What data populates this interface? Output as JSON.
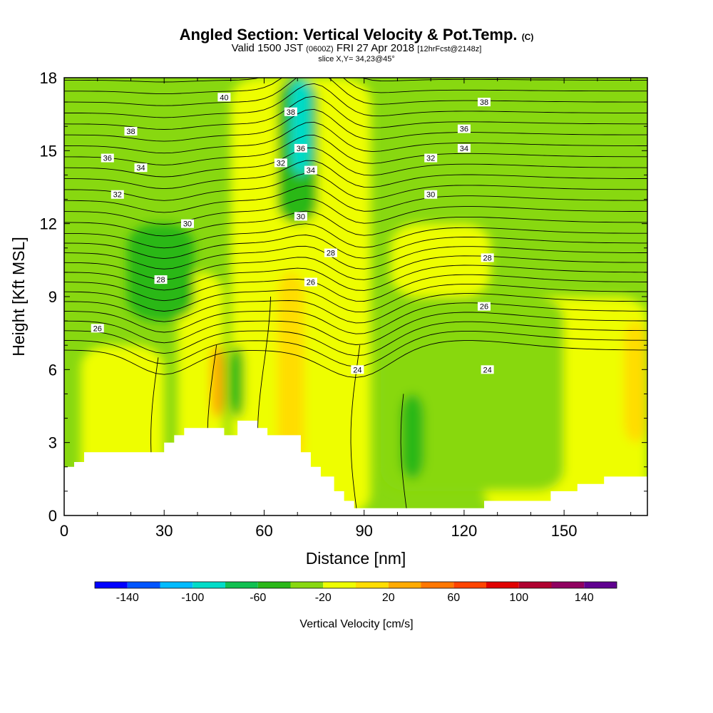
{
  "header": {
    "title_main": "Angled Section: Vertical Velocity & Pot.Temp.",
    "title_unit": "(C)",
    "valid_a": "Valid 1500 JST",
    "valid_b": "(0600Z)",
    "valid_c": "FRI 27 Apr 2018",
    "valid_d": "[12hrFcst@2148z]",
    "slice": "slice X,Y= 34,23@45°"
  },
  "chart_data": {
    "type": "heatmap",
    "xlabel": "Distance [nm]",
    "ylabel": "Height [Kft MSL]",
    "xlim": [
      0,
      175
    ],
    "ylim": [
      0,
      18
    ],
    "x_ticks": [
      0,
      30,
      60,
      90,
      120,
      150
    ],
    "y_ticks": [
      0,
      3,
      6,
      9,
      12,
      15,
      18
    ],
    "colorbar": {
      "title": "Vertical Velocity [cm/s]",
      "tick_labels": [
        -140,
        -100,
        -60,
        -20,
        20,
        60,
        100,
        140
      ],
      "levels": [
        -160,
        -140,
        -120,
        -100,
        -80,
        -60,
        -40,
        -20,
        0,
        20,
        40,
        60,
        80,
        100,
        120,
        140,
        160
      ],
      "colors": [
        "#0000ff",
        "#0055ff",
        "#00bbff",
        "#00dcc8",
        "#10c050",
        "#2ab818",
        "#88d810",
        "#eefe00",
        "#ffdd00",
        "#ffaa00",
        "#ff7700",
        "#ff4400",
        "#e00000",
        "#b00030",
        "#900060",
        "#600090"
      ]
    },
    "background_color": "#88d810",
    "w_regions": [
      {
        "level": "0-20",
        "color": "#eefe00",
        "x": [
          5,
          30
        ],
        "z": [
          0,
          7
        ]
      },
      {
        "level": "0-20",
        "color": "#eefe00",
        "x": [
          34,
          48
        ],
        "z": [
          0,
          10
        ]
      },
      {
        "level": "0-20",
        "color": "#eefe00",
        "x": [
          50,
          92
        ],
        "z": [
          0,
          18
        ]
      },
      {
        "level": "0-20",
        "color": "#eefe00",
        "x": [
          98,
          128
        ],
        "z": [
          9,
          12
        ]
      },
      {
        "level": "0-20",
        "color": "#eefe00",
        "x": [
          126,
          175
        ],
        "z": [
          0,
          9
        ]
      },
      {
        "level": "20-40",
        "color": "#ffdd00",
        "x": [
          64,
          72
        ],
        "z": [
          2,
          10
        ]
      },
      {
        "level": "20-40",
        "color": "#ffdd00",
        "x": [
          168,
          175
        ],
        "z": [
          3,
          8
        ]
      },
      {
        "level": "40-60",
        "color": "#ffaa00",
        "x": [
          44,
          48
        ],
        "z": [
          4,
          7
        ]
      },
      {
        "level": "-20-0",
        "color": "#88d810",
        "x": [
          95,
          150
        ],
        "z": [
          1,
          9
        ]
      },
      {
        "level": "-40--20",
        "color": "#2ab818",
        "x": [
          19,
          39
        ],
        "z": [
          8,
          12
        ]
      },
      {
        "level": "-40--20",
        "color": "#2ab818",
        "x": [
          101,
          108
        ],
        "z": [
          1.5,
          5
        ]
      },
      {
        "level": "-40--20",
        "color": "#2ab818",
        "x": [
          50,
          54
        ],
        "z": [
          4,
          7
        ]
      },
      {
        "level": "-40--20",
        "color": "#2ab818",
        "x": [
          64,
          76
        ],
        "z": [
          12,
          18
        ]
      },
      {
        "level": "-60--40",
        "color": "#00dcc8",
        "x": [
          68,
          74
        ],
        "z": [
          14,
          18
        ]
      }
    ],
    "pot_temp_contours": [
      {
        "value": 24,
        "label_xy": [
          88,
          6
        ]
      },
      {
        "value": 24,
        "label_xy": [
          127,
          6
        ]
      },
      {
        "value": 26,
        "label_xy": [
          10,
          7.7
        ]
      },
      {
        "value": 26,
        "label_xy": [
          74,
          9.6
        ]
      },
      {
        "value": 26,
        "label_xy": [
          126,
          8.6
        ]
      },
      {
        "value": 28,
        "label_xy": [
          29,
          9.7
        ]
      },
      {
        "value": 28,
        "label_xy": [
          80,
          10.8
        ]
      },
      {
        "value": 28,
        "label_xy": [
          127,
          10.6
        ]
      },
      {
        "value": 30,
        "label_xy": [
          37,
          12
        ]
      },
      {
        "value": 30,
        "label_xy": [
          71,
          12.3
        ]
      },
      {
        "value": 30,
        "label_xy": [
          110,
          13.2
        ]
      },
      {
        "value": 32,
        "label_xy": [
          16,
          13.2
        ]
      },
      {
        "value": 32,
        "label_xy": [
          65,
          14.5
        ]
      },
      {
        "value": 32,
        "label_xy": [
          110,
          14.7
        ]
      },
      {
        "value": 34,
        "label_xy": [
          23,
          14.3
        ]
      },
      {
        "value": 34,
        "label_xy": [
          74,
          14.2
        ]
      },
      {
        "value": 34,
        "label_xy": [
          120,
          15.1
        ]
      },
      {
        "value": 36,
        "label_xy": [
          13,
          14.7
        ]
      },
      {
        "value": 36,
        "label_xy": [
          71,
          15.1
        ]
      },
      {
        "value": 36,
        "label_xy": [
          120,
          15.9
        ]
      },
      {
        "value": 38,
        "label_xy": [
          20,
          15.8
        ]
      },
      {
        "value": 38,
        "label_xy": [
          68,
          16.6
        ]
      },
      {
        "value": 38,
        "label_xy": [
          126,
          17
        ]
      },
      {
        "value": 40,
        "label_xy": [
          48,
          17.2
        ]
      }
    ],
    "terrain": {
      "x": [
        0,
        3,
        6,
        9,
        20,
        30,
        33,
        36,
        40,
        44,
        48,
        52,
        55,
        58,
        61,
        65,
        71,
        74,
        77,
        81,
        84,
        87,
        93,
        97,
        101,
        105,
        110,
        116,
        122,
        126,
        130,
        134,
        138,
        142,
        146,
        150,
        154,
        158,
        162,
        167,
        175
      ],
      "z": [
        2.0,
        2.2,
        2.6,
        2.6,
        2.6,
        3.0,
        3.3,
        3.6,
        3.6,
        3.6,
        3.3,
        3.9,
        3.9,
        3.6,
        3.3,
        3.3,
        2.6,
        2.0,
        1.6,
        1.0,
        0.6,
        0.3,
        0.3,
        0.3,
        0.3,
        0.3,
        0.3,
        0.3,
        0.3,
        0.6,
        0.6,
        0.6,
        0.6,
        0.6,
        1.0,
        1.0,
        1.3,
        1.3,
        1.6,
        1.6,
        1.6
      ]
    }
  }
}
